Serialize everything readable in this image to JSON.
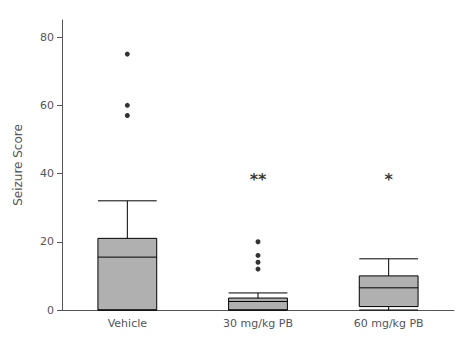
{
  "chart_data": {
    "type": "box",
    "categories": [
      "Vehicle",
      "30 mg/kg PB",
      "60 mg/kg PB"
    ],
    "whisker_low": [
      0,
      0,
      0
    ],
    "q1": [
      0,
      0,
      1
    ],
    "median": [
      15.5,
      2.5,
      6.5
    ],
    "q3": [
      21,
      3.5,
      10
    ],
    "whisker_high": [
      32,
      5,
      15
    ],
    "outliers": [
      [
        75,
        60,
        57
      ],
      [
        20,
        16,
        14,
        12
      ],
      []
    ],
    "color": "#b0b0b0",
    "ylabel": "Seizure Score",
    "ylim": [
      0,
      85
    ],
    "yticks": [
      0,
      20,
      40,
      60,
      80
    ],
    "grid": false,
    "annotations": [
      {
        "text": "**",
        "x": "30 mg/kg PB",
        "y": 36
      },
      {
        "text": "*",
        "x": "60 mg/kg PB",
        "y": 36
      }
    ]
  }
}
